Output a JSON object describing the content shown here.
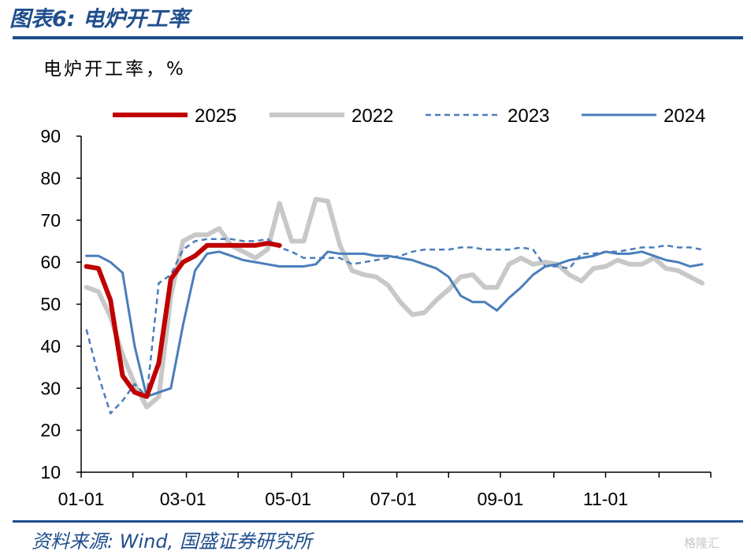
{
  "title": "图表6:  电炉开工率",
  "source": "资料来源:  Wind,  国盛证券研究所",
  "watermark": "格隆汇",
  "chart_data": {
    "type": "line",
    "unit_label": "电炉开工率，%",
    "ylim": [
      10,
      90
    ],
    "y_ticks": [
      "10",
      "20",
      "30",
      "40",
      "50",
      "60",
      "70",
      "80",
      "90"
    ],
    "y_tick_values": [
      10,
      20,
      30,
      40,
      50,
      60,
      70,
      80,
      90
    ],
    "x_ticks": [
      "01-01",
      "03-01",
      "05-01",
      "07-01",
      "09-01",
      "11-01"
    ],
    "x_tick_days": [
      0,
      59,
      120,
      181,
      243,
      304
    ],
    "x_max_days": 365,
    "legend_position": "top",
    "series": [
      {
        "name": "2025",
        "color": "#c00000",
        "style": "solid",
        "width": 6,
        "x_days": [
          3,
          10,
          17,
          24,
          31,
          38,
          45,
          52,
          59,
          66,
          73,
          80,
          87,
          94,
          101,
          108,
          115
        ],
        "y": [
          59,
          58.5,
          51,
          33,
          29,
          28,
          36,
          56,
          60,
          61.5,
          64,
          64,
          64,
          64,
          64,
          64.5,
          64
        ]
      },
      {
        "name": "2022",
        "color": "#c8c8c8",
        "style": "solid",
        "width": 6,
        "x_days": [
          3,
          10,
          17,
          24,
          31,
          38,
          45,
          52,
          59,
          66,
          73,
          80,
          87,
          94,
          101,
          108,
          115,
          122,
          129,
          136,
          143,
          150,
          157,
          164,
          171,
          178,
          185,
          192,
          199,
          206,
          213,
          220,
          227,
          234,
          241,
          248,
          255,
          262,
          269,
          276,
          283,
          290,
          297,
          304,
          311,
          318,
          325,
          332,
          339,
          346,
          353,
          360
        ],
        "y": [
          54,
          53,
          47,
          38,
          31,
          25.5,
          28,
          52,
          65,
          66.5,
          66.5,
          68,
          64,
          62.5,
          61,
          63,
          74,
          65,
          65,
          75,
          74.5,
          64,
          58,
          57,
          56.5,
          54.5,
          50.5,
          47.5,
          48,
          51,
          53.5,
          56.5,
          57,
          54,
          54,
          59.5,
          61,
          59.5,
          60,
          59.5,
          57,
          55.5,
          58.5,
          59,
          60.5,
          59.5,
          59.5,
          61,
          58.5,
          58,
          56.5,
          55
        ]
      },
      {
        "name": "2023",
        "color": "#4a7ebb",
        "style": "dashed",
        "width": 2.5,
        "x_days": [
          3,
          10,
          17,
          24,
          31,
          38,
          45,
          52,
          59,
          66,
          73,
          80,
          87,
          94,
          101,
          108,
          115,
          122,
          129,
          136,
          143,
          150,
          157,
          164,
          171,
          178,
          185,
          192,
          199,
          206,
          213,
          220,
          227,
          234,
          241,
          248,
          255,
          262,
          269,
          276,
          283,
          290,
          297,
          304,
          311,
          318,
          325,
          332,
          339,
          346,
          353,
          360
        ],
        "y": [
          44,
          33,
          24,
          27,
          31,
          28,
          55,
          57,
          63,
          65,
          65.5,
          65.5,
          65.5,
          65,
          65,
          65.5,
          63.5,
          62.5,
          61,
          61,
          61,
          61,
          59.5,
          60,
          60.5,
          61,
          61.5,
          62.5,
          63,
          63,
          63,
          63.5,
          63.5,
          63,
          63,
          63,
          63.5,
          63,
          59,
          59,
          58.5,
          62,
          62,
          62.5,
          62.5,
          63,
          63.5,
          63.5,
          64,
          63.5,
          63.5,
          63
        ]
      },
      {
        "name": "2024",
        "color": "#4a7ebb",
        "style": "solid",
        "width": 3,
        "x_days": [
          3,
          10,
          17,
          24,
          31,
          38,
          45,
          52,
          59,
          66,
          73,
          80,
          87,
          94,
          101,
          108,
          115,
          122,
          129,
          136,
          143,
          150,
          157,
          164,
          171,
          178,
          185,
          192,
          199,
          206,
          213,
          220,
          227,
          234,
          241,
          248,
          255,
          262,
          269,
          276,
          283,
          290,
          297,
          304,
          311,
          318,
          325,
          332,
          339,
          346,
          353,
          360
        ],
        "y": [
          61.5,
          61.5,
          60,
          57.5,
          40,
          28,
          29,
          30,
          45,
          58,
          62,
          62.5,
          61.5,
          60.5,
          60,
          59.5,
          59,
          59,
          59,
          59.5,
          62.5,
          62,
          62,
          62,
          61.5,
          61.5,
          61,
          60.5,
          59.5,
          58.5,
          56.5,
          52,
          50.5,
          50.5,
          48.5,
          51.5,
          54,
          57,
          59,
          59.5,
          60.5,
          61,
          61.5,
          62.5,
          62,
          62,
          62.5,
          61.5,
          60.5,
          60,
          59,
          59.5
        ]
      }
    ]
  }
}
